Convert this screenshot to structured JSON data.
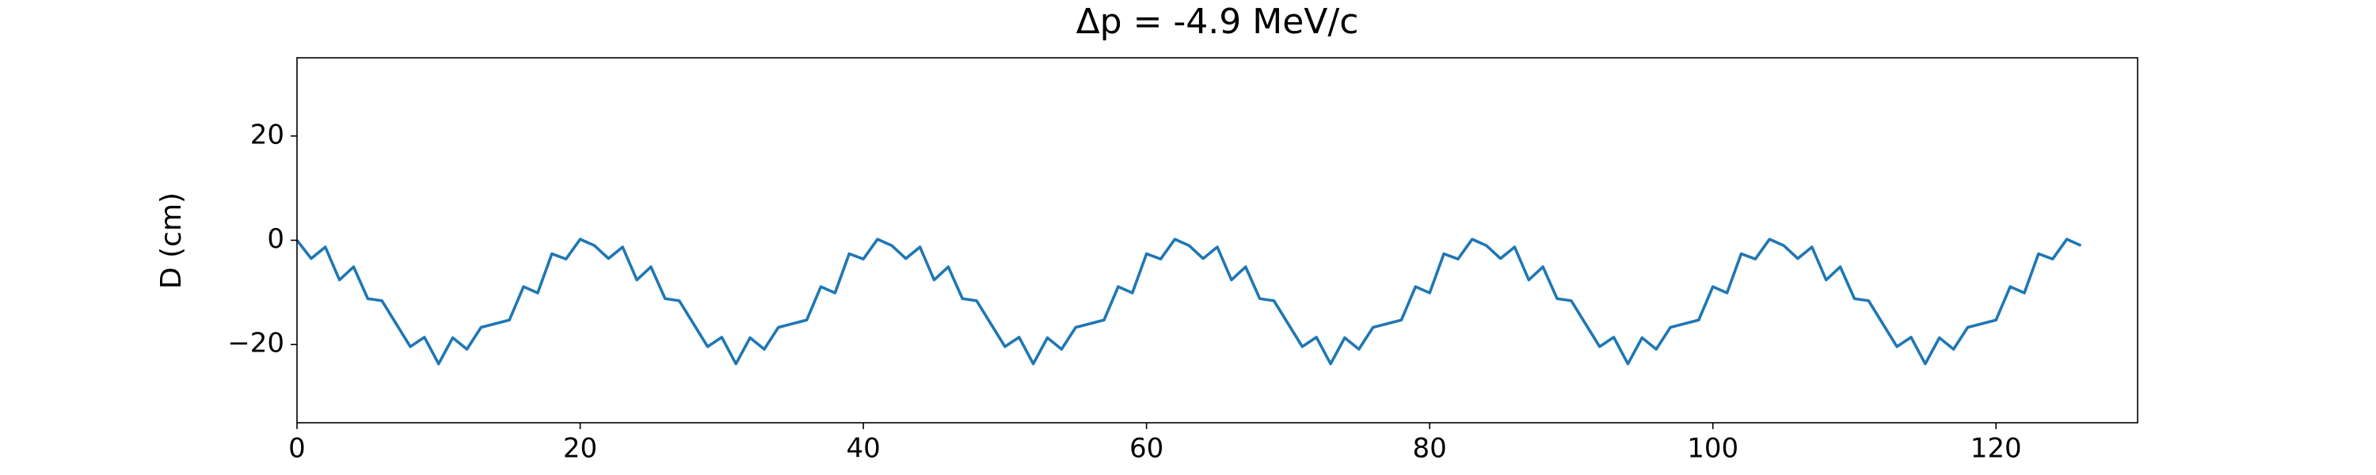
{
  "chart_data": {
    "type": "line",
    "title": "Δp = -4.9 MeV/c",
    "y_label": "D (cm)",
    "x": [
      0,
      1,
      2,
      3,
      4,
      5,
      6,
      7,
      8,
      9,
      10,
      11,
      12,
      13,
      14,
      15,
      16,
      17,
      18,
      19,
      20,
      21,
      22,
      23,
      24,
      25,
      26,
      27,
      28,
      29,
      30,
      31,
      32,
      33,
      34,
      35,
      36,
      37,
      38,
      39,
      40,
      41,
      42,
      43,
      44,
      45,
      46,
      47,
      48,
      49,
      50,
      51,
      52,
      53,
      54,
      55,
      56,
      57,
      58,
      59,
      60,
      61,
      62,
      63,
      64,
      65,
      66,
      67,
      68,
      69,
      70,
      71,
      72,
      73,
      74,
      75,
      76,
      77,
      78,
      79,
      80,
      81,
      82,
      83,
      84,
      85,
      86,
      87,
      88,
      89,
      90,
      91,
      92,
      93,
      94,
      95,
      96,
      97,
      98,
      99,
      100,
      101,
      102,
      103,
      104,
      105,
      106,
      107,
      108,
      109,
      110,
      111,
      112,
      113,
      114,
      115,
      116,
      117,
      118,
      119,
      120,
      121,
      122,
      123,
      124,
      125,
      126
    ],
    "series": [
      {
        "color": "#1f77b4",
        "values": [
          0,
          -3.5,
          -1.3,
          -7.6,
          -5.1,
          -11.2,
          -11.6,
          -16,
          -20.4,
          -18.6,
          -23.7,
          -18.7,
          -20.9,
          -16.7,
          -16,
          -15.3,
          -8.9,
          -10.1,
          -2.6,
          -3.6,
          0.2,
          -1,
          -3.5,
          -1.3,
          -7.6,
          -5.1,
          -11.2,
          -11.6,
          -16,
          -20.4,
          -18.6,
          -23.7,
          -18.7,
          -20.9,
          -16.7,
          -16,
          -15.3,
          -8.9,
          -10.1,
          -2.6,
          -3.6,
          0.2,
          -1,
          -3.5,
          -1.3,
          -7.6,
          -5.1,
          -11.2,
          -11.6,
          -16,
          -20.4,
          -18.6,
          -23.7,
          -18.7,
          -20.9,
          -16.7,
          -16,
          -15.3,
          -8.9,
          -10.1,
          -2.6,
          -3.6,
          0.2,
          -1,
          -3.5,
          -1.3,
          -7.6,
          -5.1,
          -11.2,
          -11.6,
          -16,
          -20.4,
          -18.6,
          -23.7,
          -18.7,
          -20.9,
          -16.7,
          -16,
          -15.3,
          -8.9,
          -10.1,
          -2.6,
          -3.6,
          0.2,
          -1,
          -3.5,
          -1.3,
          -7.6,
          -5.1,
          -11.2,
          -11.6,
          -16,
          -20.4,
          -18.6,
          -23.7,
          -18.7,
          -20.9,
          -16.7,
          -16,
          -15.3,
          -8.9,
          -10.1,
          -2.6,
          -3.6,
          0.2,
          -1,
          -3.5,
          -1.3,
          -7.6,
          -5.1,
          -11.2,
          -11.6,
          -16,
          -20.4,
          -18.6,
          -23.7,
          -18.7,
          -20.9,
          -16.7,
          -16,
          -15.3,
          -8.9,
          -10.1,
          -2.6,
          -3.6,
          0.2,
          -1
        ]
      }
    ],
    "xlim": [
      0,
      130
    ],
    "xticks": [
      0,
      20,
      40,
      60,
      80,
      100,
      120
    ],
    "ylim": [
      -35,
      35
    ],
    "yticks": [
      {
        "value": -20,
        "label": "−20"
      },
      0,
      20
    ]
  }
}
